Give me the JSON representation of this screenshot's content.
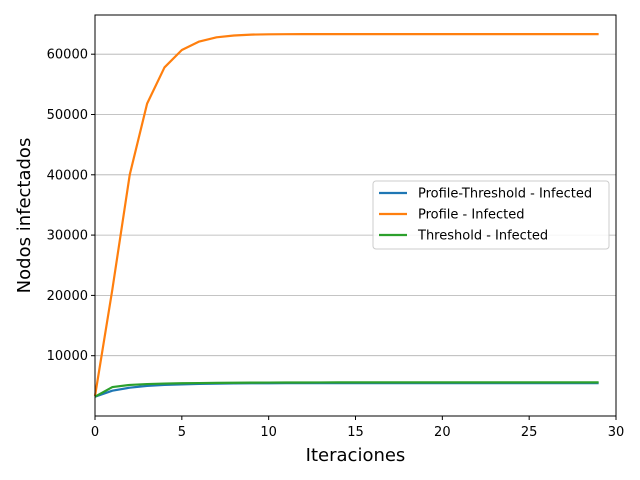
{
  "chart_data": {
    "type": "line",
    "xlabel": "Iteraciones",
    "ylabel": "Nodos infectados",
    "xlim": [
      0,
      30
    ],
    "ylim": [
      0,
      66500
    ],
    "x_ticks": [
      0,
      5,
      10,
      15,
      20,
      25,
      30
    ],
    "y_ticks": [
      10000,
      20000,
      30000,
      40000,
      50000,
      60000
    ],
    "grid": "horizontal",
    "legend_position": "center-right",
    "x": [
      0,
      1,
      2,
      3,
      4,
      5,
      6,
      7,
      8,
      9,
      10,
      11,
      12,
      13,
      14,
      15,
      16,
      17,
      18,
      19,
      20,
      21,
      22,
      23,
      24,
      25,
      26,
      27,
      28,
      29
    ],
    "series": [
      {
        "name": "Profile-Threshold - Infected",
        "color": "#1f77b4",
        "values": [
          3200,
          4200,
          4700,
          5000,
          5150,
          5250,
          5320,
          5370,
          5400,
          5420,
          5430,
          5440,
          5445,
          5450,
          5450,
          5450,
          5450,
          5450,
          5450,
          5450,
          5450,
          5450,
          5450,
          5450,
          5450,
          5450,
          5450,
          5450,
          5450,
          5450
        ]
      },
      {
        "name": "Profile - Infected",
        "color": "#ff7f0e",
        "values": [
          3300,
          21000,
          40000,
          51800,
          57800,
          60700,
          62100,
          62800,
          63100,
          63250,
          63300,
          63320,
          63330,
          63330,
          63330,
          63330,
          63330,
          63330,
          63330,
          63330,
          63330,
          63330,
          63330,
          63330,
          63330,
          63330,
          63330,
          63330,
          63330,
          63330
        ]
      },
      {
        "name": "Threshold - Infected",
        "color": "#2ca02c",
        "values": [
          3200,
          4800,
          5150,
          5300,
          5380,
          5430,
          5460,
          5490,
          5510,
          5530,
          5545,
          5555,
          5560,
          5565,
          5570,
          5570,
          5570,
          5570,
          5570,
          5570,
          5570,
          5570,
          5570,
          5570,
          5570,
          5570,
          5570,
          5570,
          5570,
          5570
        ]
      }
    ]
  }
}
